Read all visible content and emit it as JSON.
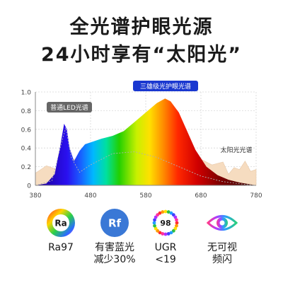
{
  "headline": {
    "line1": "全光谱护眼光源",
    "line2": "24小时享有“太阳光”"
  },
  "chart_data": {
    "type": "area",
    "x_ticks": [
      380,
      480,
      580,
      680,
      780
    ],
    "y_ticks": [
      "0",
      "0.2",
      "0.4",
      "0.6",
      "0.8",
      "1.0"
    ],
    "xlim": [
      380,
      780
    ],
    "ylim": [
      0,
      1.0
    ],
    "grid": true,
    "series": [
      {
        "name": "三雄级光护眼光谱",
        "label_color": "#1a38d0",
        "x": [
          380,
          400,
          415,
          425,
          432,
          437,
          442,
          450,
          460,
          470,
          480,
          490,
          500,
          520,
          540,
          560,
          580,
          600,
          615,
          625,
          640,
          655,
          670,
          690,
          710,
          730,
          750,
          780
        ],
        "y": [
          0.0,
          0.02,
          0.12,
          0.42,
          0.66,
          0.6,
          0.4,
          0.26,
          0.37,
          0.44,
          0.46,
          0.48,
          0.5,
          0.53,
          0.58,
          0.68,
          0.78,
          0.88,
          0.93,
          0.9,
          0.78,
          0.58,
          0.38,
          0.2,
          0.11,
          0.06,
          0.03,
          0.0
        ]
      },
      {
        "name": "普通LED光谱",
        "label_color": "#666666",
        "x": [
          380,
          410,
          425,
          435,
          445,
          460,
          480,
          520,
          560,
          600,
          640,
          680,
          720,
          760,
          780
        ],
        "y": [
          0.0,
          0.05,
          0.4,
          0.62,
          0.3,
          0.14,
          0.22,
          0.34,
          0.36,
          0.3,
          0.2,
          0.1,
          0.04,
          0.01,
          0.0
        ]
      },
      {
        "name": "太阳光光谱",
        "label_color": "#333333",
        "x": [
          380,
          400,
          420,
          440,
          460,
          480,
          500,
          520,
          540,
          560,
          580,
          600,
          620,
          640,
          660,
          680,
          700,
          720,
          730,
          740,
          750,
          760,
          770,
          780
        ],
        "y": [
          0.13,
          0.21,
          0.17,
          0.27,
          0.29,
          0.3,
          0.29,
          0.3,
          0.27,
          0.28,
          0.28,
          0.27,
          0.28,
          0.26,
          0.27,
          0.28,
          0.22,
          0.25,
          0.12,
          0.19,
          0.17,
          0.26,
          0.15,
          0.17
        ]
      }
    ]
  },
  "features": [
    {
      "label": "Ra97",
      "icon": "ra-icon",
      "icon_text": "Ra"
    },
    {
      "label": "有害蓝光\n减少30%",
      "icon": "rf-icon",
      "icon_text": "Rf",
      "icon_color": "#3a78d6"
    },
    {
      "label": "UGR\n<19",
      "icon": "ugr-icon",
      "icon_text": "98"
    },
    {
      "label": "无可视\n频闪",
      "icon": "flicker-free-icon",
      "icon_text": ""
    }
  ]
}
